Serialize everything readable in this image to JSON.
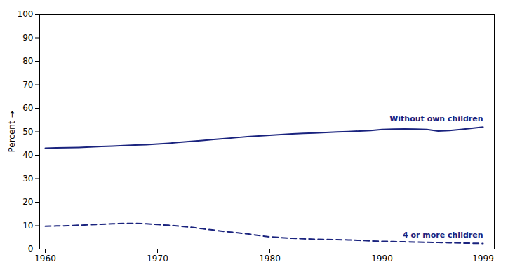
{
  "chart_data": {
    "type": "line",
    "x": [
      1960,
      1961,
      1962,
      1963,
      1964,
      1965,
      1966,
      1967,
      1968,
      1969,
      1970,
      1971,
      1972,
      1973,
      1974,
      1975,
      1976,
      1977,
      1978,
      1979,
      1980,
      1981,
      1982,
      1983,
      1984,
      1985,
      1986,
      1987,
      1988,
      1989,
      1990,
      1991,
      1992,
      1993,
      1994,
      1995,
      1996,
      1997,
      1998,
      1999
    ],
    "series": [
      {
        "name": "Without own children",
        "color": "#1a237e",
        "line_style": "solid",
        "values": [
          43.0,
          43.1,
          43.2,
          43.3,
          43.5,
          43.7,
          43.9,
          44.1,
          44.3,
          44.5,
          44.8,
          45.1,
          45.5,
          45.9,
          46.3,
          46.7,
          47.1,
          47.5,
          47.9,
          48.2,
          48.5,
          48.8,
          49.1,
          49.3,
          49.5,
          49.7,
          49.9,
          50.1,
          50.3,
          50.5,
          51.0,
          51.1,
          51.2,
          51.1,
          51.0,
          50.3,
          50.5,
          51.0,
          51.5,
          52.0
        ]
      },
      {
        "name": "4 or more children",
        "color": "#1a237e",
        "line_style": "dashed",
        "values": [
          9.8,
          9.9,
          10.0,
          10.2,
          10.4,
          10.6,
          10.8,
          11.0,
          11.0,
          10.8,
          10.5,
          10.2,
          9.8,
          9.3,
          8.7,
          8.1,
          7.5,
          7.0,
          6.5,
          5.8,
          5.2,
          4.9,
          4.6,
          4.4,
          4.2,
          4.1,
          4.0,
          3.9,
          3.7,
          3.5,
          3.3,
          3.2,
          3.1,
          3.0,
          2.9,
          2.8,
          2.7,
          2.6,
          2.5,
          2.4
        ]
      }
    ],
    "ylabel": "Percent",
    "xlim": [
      1959.5,
      2000
    ],
    "ylim": [
      0,
      100
    ],
    "xticks": [
      1960,
      1970,
      1980,
      1990,
      1999
    ],
    "yticks": [
      0,
      10,
      20,
      30,
      40,
      50,
      60,
      70,
      80,
      90,
      100
    ],
    "grid": false
  }
}
